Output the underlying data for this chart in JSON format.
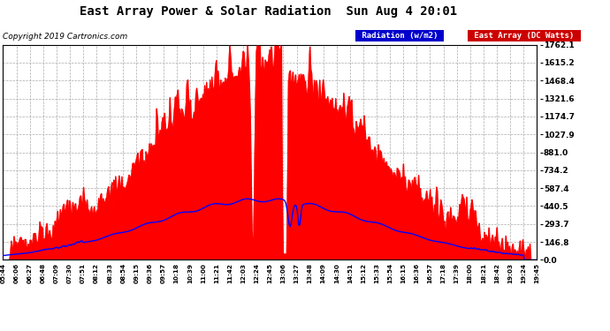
{
  "title": "East Array Power & Solar Radiation  Sun Aug 4 20:01",
  "copyright": "Copyright 2019 Cartronics.com",
  "legend_radiation": "Radiation (w/m2)",
  "legend_east": "East Array (DC Watts)",
  "radiation_color": "#0000ff",
  "east_color": "#ff0000",
  "east_fill_color": "#ff0000",
  "background_color": "#ffffff",
  "plot_bg_color": "#ffffff",
  "grid_color": "#aaaaaa",
  "legend_radiation_bg": "#0000cc",
  "legend_east_bg": "#cc0000",
  "ymax": 1762.1,
  "ymin": 0.0,
  "yticks": [
    0.0,
    146.8,
    293.7,
    440.5,
    587.4,
    734.2,
    881.0,
    1027.9,
    1174.7,
    1321.6,
    1468.4,
    1615.2,
    1762.1
  ],
  "x_labels": [
    "05:44",
    "06:06",
    "06:27",
    "06:48",
    "07:09",
    "07:30",
    "07:51",
    "08:12",
    "08:33",
    "08:54",
    "09:15",
    "09:36",
    "09:57",
    "10:18",
    "10:39",
    "11:00",
    "11:21",
    "11:42",
    "12:03",
    "12:24",
    "12:45",
    "13:06",
    "13:27",
    "13:48",
    "14:09",
    "14:30",
    "14:51",
    "15:12",
    "15:33",
    "15:54",
    "16:15",
    "16:36",
    "16:57",
    "17:18",
    "17:39",
    "18:00",
    "18:21",
    "18:42",
    "19:03",
    "19:24",
    "19:45"
  ]
}
